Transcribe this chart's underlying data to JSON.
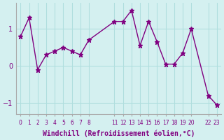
{
  "x": [
    0,
    1,
    2,
    3,
    4,
    5,
    6,
    7,
    8,
    11,
    12,
    13,
    14,
    15,
    16,
    17,
    18,
    19,
    20,
    22,
    23
  ],
  "y": [
    0.8,
    1.3,
    -0.1,
    0.3,
    0.4,
    0.5,
    0.4,
    0.3,
    0.7,
    1.2,
    1.2,
    1.5,
    0.55,
    1.2,
    0.65,
    0.05,
    0.05,
    0.35,
    1.0,
    -0.8,
    -1.05
  ],
  "line_color": "#800080",
  "marker": "*",
  "marker_size": 5,
  "bg_color": "#d4f0f0",
  "grid_color": "#b0dede",
  "xlabel": "Windchill (Refroidissement éolien,°C)",
  "xlabel_color": "#800080",
  "tick_color": "#800080",
  "yticks": [
    -1,
    0,
    1
  ],
  "xtick_positions": [
    0,
    1,
    2,
    3,
    4,
    5,
    6,
    7,
    8,
    11,
    12,
    13,
    14,
    15,
    16,
    17,
    18,
    19,
    20,
    22,
    23
  ],
  "xtick_labels": [
    "0",
    "1",
    "2",
    "3",
    "4",
    "5",
    "6",
    "7",
    "8",
    "11",
    "12",
    "13",
    "14",
    "15",
    "16",
    "17",
    "18",
    "19",
    "20",
    "22",
    "23"
  ],
  "xlim": [
    -0.5,
    23.5
  ],
  "ylim": [
    -1.3,
    1.7
  ],
  "figsize": [
    3.2,
    2.0
  ],
  "dpi": 100
}
